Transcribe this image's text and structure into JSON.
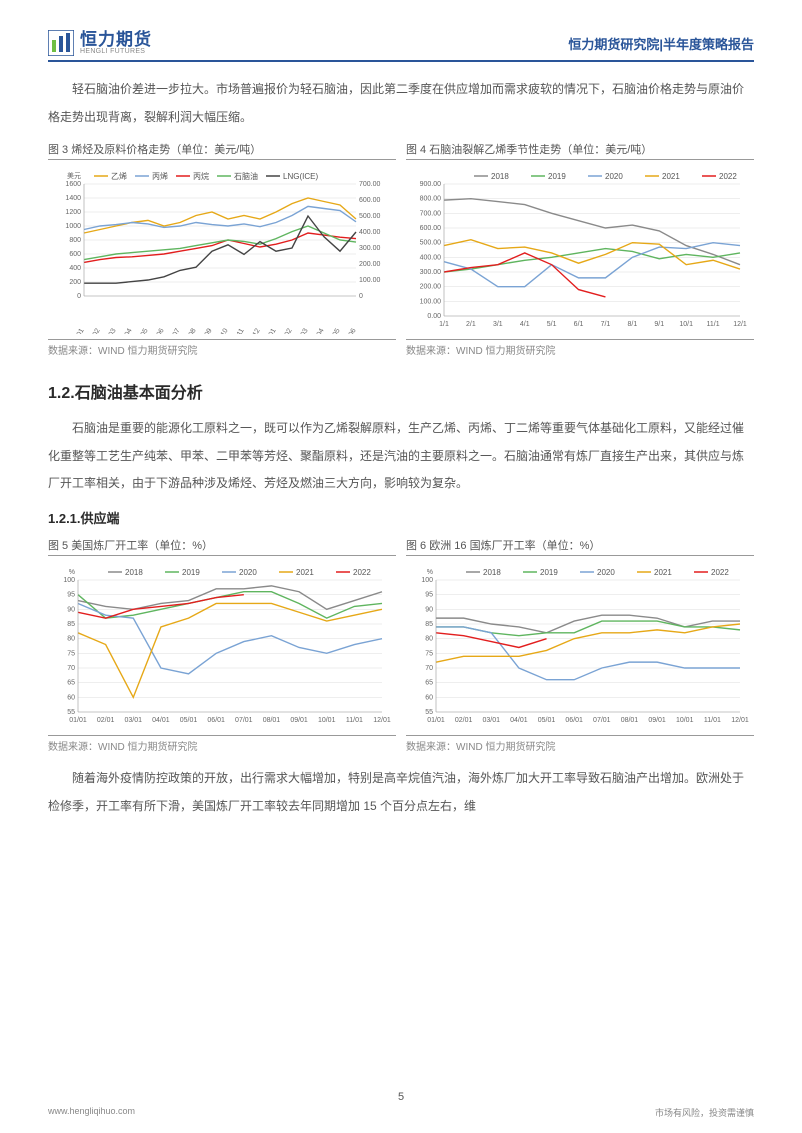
{
  "header": {
    "logo_cn": "恒力期货",
    "logo_en": "HENGLI FUTURES",
    "right_a": "恒力期货研究院",
    "right_sep": "|",
    "right_b": "半年度策略报告"
  },
  "intro_para": "轻石脑油价差进一步拉大。市场普遍报价为轻石脑油，因此第二季度在供应增加而需求疲软的情况下，石脑油价格走势与原油价格走势出现背离，裂解利润大幅压缩。",
  "fig3": {
    "title": "图 3 烯烃及原料价格走势（单位：美元/吨）",
    "source": "数据来源：WIND 恒力期货研究院",
    "type": "line",
    "y_left_label": "美元",
    "y_left_ticks": [
      0,
      200,
      400,
      600,
      800,
      1000,
      1200,
      1400,
      1600
    ],
    "y_right_ticks": [
      0,
      "100.00",
      "200.00",
      "300.00",
      "400.00",
      "500.00",
      "600.00",
      "700.00"
    ],
    "x_labels": [
      "2021-01",
      "2021-02",
      "2021-03",
      "2021-04",
      "2021-05",
      "2021-06",
      "2021-07",
      "2021-08",
      "2021-09",
      "2021-10",
      "2021-11",
      "2021-12",
      "2022-01",
      "2022-02",
      "2022-03",
      "2022-04",
      "2022-05",
      "2022-06"
    ],
    "series": [
      {
        "name": "乙烯",
        "color": "#e6a817",
        "axis": "left",
        "data": [
          900,
          950,
          1000,
          1050,
          1080,
          1000,
          1050,
          1150,
          1200,
          1100,
          1150,
          1100,
          1200,
          1320,
          1400,
          1350,
          1300,
          1100
        ]
      },
      {
        "name": "丙烯",
        "color": "#7aa3d4",
        "axis": "left",
        "data": [
          950,
          1000,
          1020,
          1050,
          1030,
          980,
          1000,
          1050,
          1020,
          1000,
          1030,
          990,
          1050,
          1150,
          1280,
          1250,
          1220,
          1060
        ]
      },
      {
        "name": "丙烷",
        "color": "#e21e1e",
        "axis": "left",
        "data": [
          480,
          520,
          550,
          560,
          580,
          600,
          640,
          680,
          720,
          800,
          750,
          700,
          740,
          800,
          900,
          870,
          840,
          820
        ]
      },
      {
        "name": "石脑油",
        "color": "#5fb55f",
        "axis": "left",
        "data": [
          520,
          560,
          600,
          620,
          640,
          660,
          680,
          720,
          760,
          800,
          780,
          740,
          820,
          920,
          1000,
          900,
          800,
          770
        ]
      },
      {
        "name": "LNG(ICE)",
        "color": "#444444",
        "axis": "right",
        "data": [
          80,
          80,
          80,
          90,
          100,
          120,
          160,
          180,
          280,
          320,
          260,
          340,
          280,
          300,
          500,
          370,
          280,
          400
        ]
      }
    ],
    "grid_color": "#dddddd",
    "bg": "#ffffff"
  },
  "fig4": {
    "title": "图 4 石脑油裂解乙烯季节性走势（单位：美元/吨）",
    "source": "数据来源：WIND 恒力期货研究院",
    "type": "line",
    "y_ticks": [
      "0.00",
      "100.00",
      "200.00",
      "300.00",
      "400.00",
      "500.00",
      "600.00",
      "700.00",
      "800.00",
      "900.00"
    ],
    "x_labels": [
      "1/1",
      "2/1",
      "3/1",
      "4/1",
      "5/1",
      "6/1",
      "7/1",
      "8/1",
      "9/1",
      "10/1",
      "11/1",
      "12/1"
    ],
    "series": [
      {
        "name": "2018",
        "color": "#8a8a8a",
        "data": [
          790,
          800,
          780,
          760,
          700,
          650,
          600,
          620,
          580,
          480,
          420,
          350
        ]
      },
      {
        "name": "2019",
        "color": "#5fb55f",
        "data": [
          300,
          320,
          350,
          380,
          400,
          430,
          460,
          440,
          390,
          420,
          400,
          430
        ]
      },
      {
        "name": "2020",
        "color": "#7aa3d4",
        "data": [
          370,
          320,
          200,
          200,
          350,
          260,
          260,
          400,
          470,
          460,
          500,
          480
        ]
      },
      {
        "name": "2021",
        "color": "#e6a817",
        "data": [
          480,
          520,
          460,
          470,
          430,
          360,
          420,
          500,
          490,
          350,
          380,
          320
        ]
      },
      {
        "name": "2022",
        "color": "#e21e1e",
        "data": [
          300,
          330,
          350,
          430,
          350,
          180,
          130,
          null,
          null,
          null,
          null,
          null
        ]
      }
    ],
    "grid_color": "#dddddd",
    "bg": "#ffffff"
  },
  "h2_1": "1.2.石脑油基本面分析",
  "para2": "石脑油是重要的能源化工原料之一，既可以作为乙烯裂解原料，生产乙烯、丙烯、丁二烯等重要气体基础化工原料，又能经过催化重整等工艺生产纯苯、甲苯、二甲苯等芳烃、聚酯原料，还是汽油的主要原料之一。石脑油通常有炼厂直接生产出来，其供应与炼厂开工率相关，由于下游品种涉及烯烃、芳烃及燃油三大方向，影响较为复杂。",
  "h3_1": "1.2.1.供应端",
  "fig5": {
    "title": "图 5 美国炼厂开工率（单位：%）",
    "source": "数据来源：WIND 恒力期货研究院",
    "type": "line",
    "y_label": "%",
    "y_ticks": [
      55,
      60,
      65,
      70,
      75,
      80,
      85,
      90,
      95,
      100
    ],
    "x_labels": [
      "01/01",
      "02/01",
      "03/01",
      "04/01",
      "05/01",
      "06/01",
      "07/01",
      "08/01",
      "09/01",
      "10/01",
      "11/01",
      "12/01"
    ],
    "series": [
      {
        "name": "2018",
        "color": "#8a8a8a",
        "data": [
          93,
          91,
          90,
          92,
          93,
          97,
          97,
          98,
          96,
          90,
          93,
          96
        ]
      },
      {
        "name": "2019",
        "color": "#5fb55f",
        "data": [
          95,
          87,
          88,
          90,
          92,
          94,
          96,
          96,
          92,
          87,
          91,
          92
        ]
      },
      {
        "name": "2020",
        "color": "#7aa3d4",
        "data": [
          92,
          88,
          87,
          70,
          68,
          75,
          79,
          81,
          77,
          75,
          78,
          80
        ]
      },
      {
        "name": "2021",
        "color": "#e6a817",
        "data": [
          82,
          78,
          60,
          84,
          87,
          92,
          92,
          92,
          89,
          86,
          88,
          90
        ]
      },
      {
        "name": "2022",
        "color": "#e21e1e",
        "data": [
          89,
          87,
          90,
          91,
          92,
          94,
          95,
          null,
          null,
          null,
          null,
          null
        ]
      }
    ],
    "grid_color": "#dddddd",
    "bg": "#ffffff"
  },
  "fig6": {
    "title": "图 6 欧洲 16 国炼厂开工率（单位：%）",
    "source": "数据来源：WIND 恒力期货研究院",
    "type": "line",
    "y_label": "%",
    "y_ticks": [
      55,
      60,
      65,
      70,
      75,
      80,
      85,
      90,
      95,
      100
    ],
    "x_labels": [
      "01/01",
      "02/01",
      "03/01",
      "04/01",
      "05/01",
      "06/01",
      "07/01",
      "08/01",
      "09/01",
      "10/01",
      "11/01",
      "12/01"
    ],
    "series": [
      {
        "name": "2018",
        "color": "#8a8a8a",
        "data": [
          87,
          87,
          85,
          84,
          82,
          86,
          88,
          88,
          87,
          84,
          86,
          86
        ]
      },
      {
        "name": "2019",
        "color": "#5fb55f",
        "data": [
          84,
          84,
          82,
          81,
          82,
          82,
          86,
          86,
          86,
          84,
          84,
          83
        ]
      },
      {
        "name": "2020",
        "color": "#7aa3d4",
        "data": [
          84,
          84,
          82,
          70,
          66,
          66,
          70,
          72,
          72,
          70,
          70,
          70
        ]
      },
      {
        "name": "2021",
        "color": "#e6a817",
        "data": [
          72,
          74,
          74,
          74,
          76,
          80,
          82,
          82,
          83,
          82,
          84,
          85
        ]
      },
      {
        "name": "2022",
        "color": "#e21e1e",
        "data": [
          82,
          81,
          79,
          77,
          80,
          null,
          null,
          null,
          null,
          null,
          null,
          null
        ]
      }
    ],
    "grid_color": "#dddddd",
    "bg": "#ffffff"
  },
  "para3": "随着海外疫情防控政策的开放，出行需求大幅增加，特别是高辛烷值汽油，海外炼厂加大开工率导致石脑油产出增加。欧洲处于检修季，开工率有所下滑，美国炼厂开工率较去年同期增加 15 个百分点左右，维",
  "footer": {
    "left": "www.hengliqihuo.com",
    "right": "市场有风险，投资需谨慎",
    "page": "5"
  },
  "legend_font_size": 8,
  "axis_font_size": 7
}
